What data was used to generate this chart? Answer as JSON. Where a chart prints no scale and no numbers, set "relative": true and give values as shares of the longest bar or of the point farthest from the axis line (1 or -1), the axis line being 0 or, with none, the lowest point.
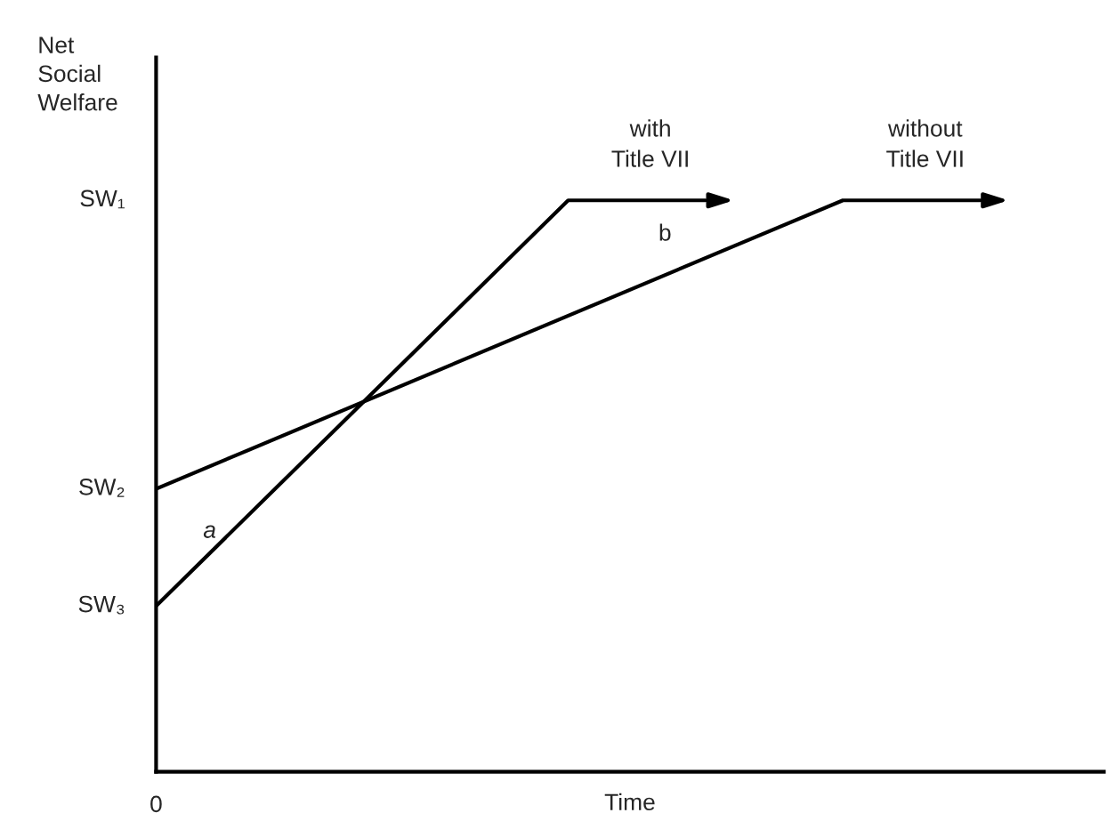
{
  "chart_data": {
    "type": "line",
    "relative": true,
    "ylabel": "Net\nSocial\nWelfare",
    "xlabel": "Time",
    "categories": [
      null,
      null,
      null,
      null,
      null,
      null,
      null,
      null,
      null,
      null,
      null,
      null,
      null
    ],
    "series": [
      {
        "name": "with\nTitle VII",
        "color": "#000000",
        "values": [
          0.29,
          null,
          null,
          null,
          null,
          null,
          1,
          null,
          1,
          null,
          null,
          null,
          null
        ]
      },
      {
        "name": "without\nTitle VII",
        "color": "#000000",
        "values": [
          0.495,
          null,
          null,
          null,
          null,
          null,
          null,
          null,
          null,
          null,
          1,
          null,
          1
        ]
      }
    ],
    "annotations": [
      "a",
      "b",
      "0",
      "SW₁",
      "SW₂",
      "SW₃"
    ],
    "grid": false,
    "legend": false,
    "marker": "none",
    "line_style": "solid"
  }
}
